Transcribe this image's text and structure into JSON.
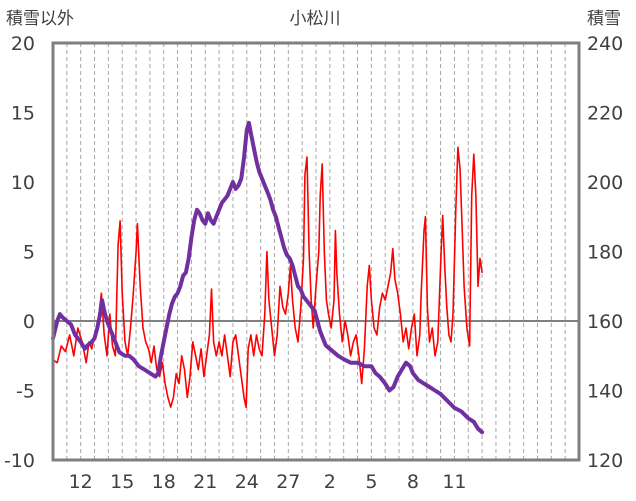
{
  "chart_data": {
    "type": "line",
    "title": "小松川",
    "left_axis_label": "積雪以外",
    "right_axis_label": "積雪",
    "left_ylim": [
      -10,
      20
    ],
    "right_ylim": [
      120,
      240
    ],
    "left_ticks": [
      "20",
      "15",
      "10",
      "5",
      "0",
      "-5",
      "-10"
    ],
    "right_ticks": [
      "240",
      "220",
      "200",
      "180",
      "160",
      "140",
      "120"
    ],
    "x_range": [
      0,
      38
    ],
    "x_tick_labels": [
      {
        "x": 2.0,
        "label": "12"
      },
      {
        "x": 5.0,
        "label": "15"
      },
      {
        "x": 8.0,
        "label": "18"
      },
      {
        "x": 11.0,
        "label": "21"
      },
      {
        "x": 14.0,
        "label": "24"
      },
      {
        "x": 17.0,
        "label": "27"
      },
      {
        "x": 20.0,
        "label": "2"
      },
      {
        "x": 23.0,
        "label": "5"
      },
      {
        "x": 26.0,
        "label": "8"
      },
      {
        "x": 29.0,
        "label": "11"
      }
    ],
    "grid": "vertical dashed daily lines, zero reference line",
    "series": [
      {
        "color": "#ff0000",
        "axis": "left",
        "points": [
          [
            0,
            -2.8
          ],
          [
            0.3,
            -3.0
          ],
          [
            0.6,
            -1.8
          ],
          [
            0.9,
            -2.2
          ],
          [
            1.2,
            -1.0
          ],
          [
            1.5,
            -2.5
          ],
          [
            1.8,
            -0.5
          ],
          [
            2.1,
            -1.5
          ],
          [
            2.4,
            -3.0
          ],
          [
            2.6,
            -1.5
          ],
          [
            2.8,
            -2.0
          ],
          [
            3.0,
            -1.0
          ],
          [
            3.2,
            -0.5
          ],
          [
            3.5,
            2.0
          ],
          [
            3.7,
            -1.0
          ],
          [
            3.9,
            -2.5
          ],
          [
            4.1,
            0.5
          ],
          [
            4.3,
            -1.8
          ],
          [
            4.5,
            -2.5
          ],
          [
            4.7,
            5.5
          ],
          [
            4.85,
            7.2
          ],
          [
            5.0,
            2.0
          ],
          [
            5.2,
            -1.5
          ],
          [
            5.4,
            -2.5
          ],
          [
            5.6,
            -0.5
          ],
          [
            5.8,
            2.0
          ],
          [
            6.0,
            5.0
          ],
          [
            6.1,
            7.0
          ],
          [
            6.3,
            2.5
          ],
          [
            6.5,
            -0.5
          ],
          [
            6.7,
            -1.5
          ],
          [
            6.9,
            -2.0
          ],
          [
            7.1,
            -3.0
          ],
          [
            7.3,
            -1.8
          ],
          [
            7.5,
            -3.5
          ],
          [
            7.7,
            -4.0
          ],
          [
            7.9,
            -3.0
          ],
          [
            8.1,
            -4.5
          ],
          [
            8.3,
            -5.5
          ],
          [
            8.5,
            -6.2
          ],
          [
            8.7,
            -5.5
          ],
          [
            8.9,
            -3.8
          ],
          [
            9.1,
            -4.5
          ],
          [
            9.3,
            -2.5
          ],
          [
            9.5,
            -3.5
          ],
          [
            9.7,
            -5.5
          ],
          [
            9.9,
            -4.0
          ],
          [
            10.1,
            -1.5
          ],
          [
            10.3,
            -2.5
          ],
          [
            10.5,
            -3.5
          ],
          [
            10.7,
            -2.0
          ],
          [
            10.9,
            -4.0
          ],
          [
            11.1,
            -2.5
          ],
          [
            11.3,
            -1.0
          ],
          [
            11.45,
            2.3
          ],
          [
            11.6,
            -1.5
          ],
          [
            11.8,
            -2.5
          ],
          [
            12.0,
            -1.5
          ],
          [
            12.2,
            -2.5
          ],
          [
            12.4,
            -1.0
          ],
          [
            12.6,
            -2.5
          ],
          [
            12.8,
            -4.0
          ],
          [
            13.0,
            -1.5
          ],
          [
            13.2,
            -1.0
          ],
          [
            13.4,
            -2.5
          ],
          [
            13.6,
            -4.0
          ],
          [
            13.8,
            -5.5
          ],
          [
            13.95,
            -6.2
          ],
          [
            14.1,
            -2.0
          ],
          [
            14.3,
            -1.0
          ],
          [
            14.5,
            -2.5
          ],
          [
            14.7,
            -1.0
          ],
          [
            14.9,
            -2.0
          ],
          [
            15.1,
            -2.5
          ],
          [
            15.3,
            0.5
          ],
          [
            15.45,
            5.0
          ],
          [
            15.6,
            1.5
          ],
          [
            15.8,
            -0.5
          ],
          [
            16.0,
            -2.5
          ],
          [
            16.2,
            -1.0
          ],
          [
            16.4,
            2.5
          ],
          [
            16.6,
            1.0
          ],
          [
            16.8,
            0.5
          ],
          [
            17.0,
            2.0
          ],
          [
            17.15,
            4.0
          ],
          [
            17.3,
            1.5
          ],
          [
            17.5,
            -0.5
          ],
          [
            17.7,
            -1.5
          ],
          [
            17.9,
            1.0
          ],
          [
            18.1,
            4.5
          ],
          [
            18.2,
            10.5
          ],
          [
            18.35,
            11.8
          ],
          [
            18.5,
            5.0
          ],
          [
            18.65,
            1.5
          ],
          [
            18.8,
            -0.5
          ],
          [
            19.0,
            2.5
          ],
          [
            19.2,
            5.0
          ],
          [
            19.3,
            9.0
          ],
          [
            19.45,
            11.3
          ],
          [
            19.6,
            5.0
          ],
          [
            19.75,
            1.5
          ],
          [
            19.9,
            0.5
          ],
          [
            20.1,
            -0.5
          ],
          [
            20.3,
            1.5
          ],
          [
            20.4,
            6.5
          ],
          [
            20.5,
            3.5
          ],
          [
            20.7,
            0.5
          ],
          [
            20.9,
            -1.5
          ],
          [
            21.1,
            0.0
          ],
          [
            21.3,
            -1.0
          ],
          [
            21.5,
            -2.5
          ],
          [
            21.7,
            -1.5
          ],
          [
            21.9,
            -1.0
          ],
          [
            22.1,
            -2.5
          ],
          [
            22.3,
            -4.5
          ],
          [
            22.5,
            -2.0
          ],
          [
            22.7,
            2.5
          ],
          [
            22.85,
            4.0
          ],
          [
            23.0,
            1.5
          ],
          [
            23.2,
            -0.5
          ],
          [
            23.4,
            -1.0
          ],
          [
            23.6,
            1.0
          ],
          [
            23.8,
            2.0
          ],
          [
            24.0,
            1.5
          ],
          [
            24.2,
            2.5
          ],
          [
            24.4,
            3.5
          ],
          [
            24.55,
            5.2
          ],
          [
            24.7,
            3.0
          ],
          [
            24.9,
            2.0
          ],
          [
            25.1,
            0.5
          ],
          [
            25.3,
            -1.5
          ],
          [
            25.5,
            -0.5
          ],
          [
            25.7,
            -2.0
          ],
          [
            25.9,
            -0.5
          ],
          [
            26.1,
            0.5
          ],
          [
            26.3,
            -2.5
          ],
          [
            26.5,
            -1.0
          ],
          [
            26.6,
            2.0
          ],
          [
            26.8,
            6.5
          ],
          [
            26.9,
            7.5
          ],
          [
            27.05,
            1.0
          ],
          [
            27.2,
            -1.5
          ],
          [
            27.4,
            -0.5
          ],
          [
            27.6,
            -2.5
          ],
          [
            27.8,
            -1.5
          ],
          [
            28.0,
            4.0
          ],
          [
            28.15,
            7.6
          ],
          [
            28.3,
            4.0
          ],
          [
            28.45,
            1.0
          ],
          [
            28.6,
            -1.0
          ],
          [
            28.75,
            -1.5
          ],
          [
            28.9,
            0.5
          ],
          [
            29.1,
            8.0
          ],
          [
            29.25,
            12.5
          ],
          [
            29.4,
            11.0
          ],
          [
            29.55,
            7.0
          ],
          [
            29.7,
            2.5
          ],
          [
            29.9,
            -0.5
          ],
          [
            30.1,
            -1.8
          ],
          [
            30.25,
            9.0
          ],
          [
            30.4,
            12.0
          ],
          [
            30.55,
            9.0
          ],
          [
            30.7,
            2.5
          ],
          [
            30.85,
            4.5
          ],
          [
            31.0,
            3.5
          ]
        ]
      },
      {
        "color": "#7030a0",
        "axis": "right",
        "points": [
          [
            0,
            155
          ],
          [
            0.3,
            160
          ],
          [
            0.5,
            162
          ],
          [
            0.7,
            161
          ],
          [
            1.0,
            160
          ],
          [
            1.3,
            159
          ],
          [
            1.6,
            156
          ],
          [
            2.0,
            154
          ],
          [
            2.3,
            152
          ],
          [
            2.5,
            153
          ],
          [
            2.8,
            154
          ],
          [
            3.0,
            155
          ],
          [
            3.2,
            158
          ],
          [
            3.4,
            162
          ],
          [
            3.55,
            166
          ],
          [
            3.7,
            163
          ],
          [
            3.9,
            160
          ],
          [
            4.2,
            157
          ],
          [
            4.5,
            154
          ],
          [
            4.8,
            151
          ],
          [
            5.2,
            150
          ],
          [
            5.5,
            150
          ],
          [
            5.8,
            149
          ],
          [
            6.2,
            147
          ],
          [
            6.6,
            146
          ],
          [
            7.0,
            145
          ],
          [
            7.4,
            144
          ],
          [
            7.6,
            145
          ],
          [
            7.8,
            150
          ],
          [
            8.0,
            154
          ],
          [
            8.2,
            158
          ],
          [
            8.4,
            162
          ],
          [
            8.6,
            165
          ],
          [
            8.8,
            167
          ],
          [
            9.0,
            168
          ],
          [
            9.2,
            170
          ],
          [
            9.4,
            173
          ],
          [
            9.6,
            174
          ],
          [
            9.8,
            178
          ],
          [
            10.0,
            184
          ],
          [
            10.2,
            189
          ],
          [
            10.4,
            192
          ],
          [
            10.6,
            191
          ],
          [
            10.8,
            189
          ],
          [
            11.0,
            188
          ],
          [
            11.2,
            191
          ],
          [
            11.4,
            189
          ],
          [
            11.6,
            188
          ],
          [
            11.8,
            190
          ],
          [
            12.0,
            192
          ],
          [
            12.2,
            194
          ],
          [
            12.4,
            195
          ],
          [
            12.6,
            196
          ],
          [
            12.8,
            198
          ],
          [
            13.0,
            200
          ],
          [
            13.2,
            198
          ],
          [
            13.4,
            199
          ],
          [
            13.6,
            201
          ],
          [
            13.8,
            207
          ],
          [
            14.0,
            215
          ],
          [
            14.15,
            217
          ],
          [
            14.3,
            214
          ],
          [
            14.5,
            210
          ],
          [
            14.7,
            206
          ],
          [
            14.9,
            203
          ],
          [
            15.1,
            201
          ],
          [
            15.3,
            199
          ],
          [
            15.5,
            197
          ],
          [
            15.7,
            195
          ],
          [
            15.9,
            192
          ],
          [
            16.1,
            190
          ],
          [
            16.3,
            187
          ],
          [
            16.5,
            184
          ],
          [
            16.7,
            181
          ],
          [
            16.9,
            179
          ],
          [
            17.1,
            178
          ],
          [
            17.3,
            176
          ],
          [
            17.5,
            173
          ],
          [
            17.7,
            170
          ],
          [
            17.9,
            169
          ],
          [
            18.1,
            167
          ],
          [
            18.3,
            166
          ],
          [
            18.5,
            165
          ],
          [
            18.7,
            164
          ],
          [
            18.9,
            163
          ],
          [
            19.1,
            160
          ],
          [
            19.3,
            157
          ],
          [
            19.5,
            155
          ],
          [
            19.7,
            153
          ],
          [
            20.0,
            152
          ],
          [
            20.3,
            151
          ],
          [
            20.6,
            150
          ],
          [
            21.0,
            149
          ],
          [
            21.5,
            148
          ],
          [
            22.0,
            148
          ],
          [
            22.5,
            147
          ],
          [
            23.0,
            147
          ],
          [
            23.3,
            145
          ],
          [
            23.6,
            144
          ],
          [
            24.0,
            142
          ],
          [
            24.3,
            140
          ],
          [
            24.6,
            141
          ],
          [
            24.9,
            144
          ],
          [
            25.2,
            146
          ],
          [
            25.5,
            148
          ],
          [
            25.8,
            147
          ],
          [
            26.0,
            145
          ],
          [
            26.4,
            143
          ],
          [
            26.8,
            142
          ],
          [
            27.2,
            141
          ],
          [
            27.6,
            140
          ],
          [
            28.0,
            139
          ],
          [
            28.5,
            137
          ],
          [
            29.0,
            135
          ],
          [
            29.5,
            134
          ],
          [
            30.0,
            132
          ],
          [
            30.4,
            131
          ],
          [
            30.7,
            129
          ],
          [
            31.0,
            128
          ]
        ]
      }
    ]
  }
}
